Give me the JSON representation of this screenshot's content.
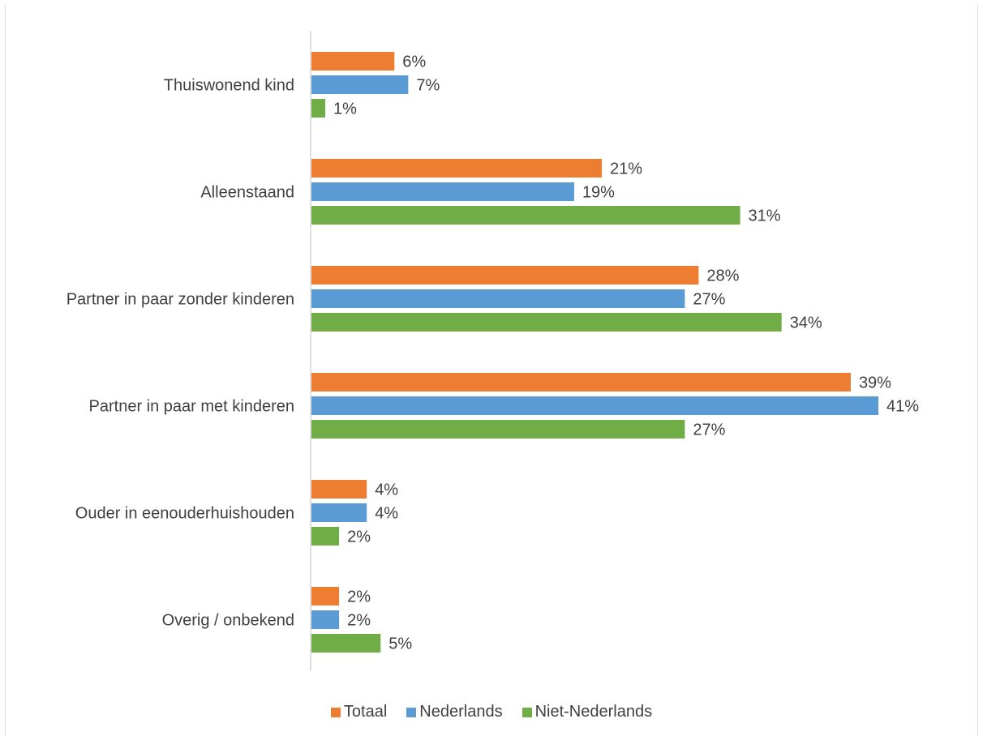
{
  "chart_data": {
    "type": "bar",
    "orientation": "horizontal",
    "title": "",
    "categories": [
      "Thuiswonend kind",
      "Alleenstaand",
      "Partner in paar zonder kinderen",
      "Partner in paar met kinderen",
      "Ouder in eenouderhuishouden",
      "Overig / onbekend"
    ],
    "series": [
      {
        "name": "Totaal",
        "color": "#ed7d31",
        "values": [
          6,
          21,
          28,
          39,
          4,
          2
        ],
        "labels": [
          "6%",
          "21%",
          "28%",
          "39%",
          "4%",
          "2%"
        ]
      },
      {
        "name": "Nederlands",
        "color": "#5b9bd5",
        "values": [
          7,
          19,
          27,
          41,
          4,
          2
        ],
        "labels": [
          "7%",
          "19%",
          "27%",
          "41%",
          "4%",
          "2%"
        ]
      },
      {
        "name": "Niet-Nederlands",
        "color": "#70ad47",
        "values": [
          1,
          31,
          34,
          27,
          2,
          5
        ],
        "labels": [
          "1%",
          "31%",
          "34%",
          "27%",
          "2%",
          "5%"
        ]
      }
    ],
    "xlim": [
      0,
      42
    ],
    "value_unit": "%",
    "grid": false,
    "legend_position": "bottom"
  }
}
